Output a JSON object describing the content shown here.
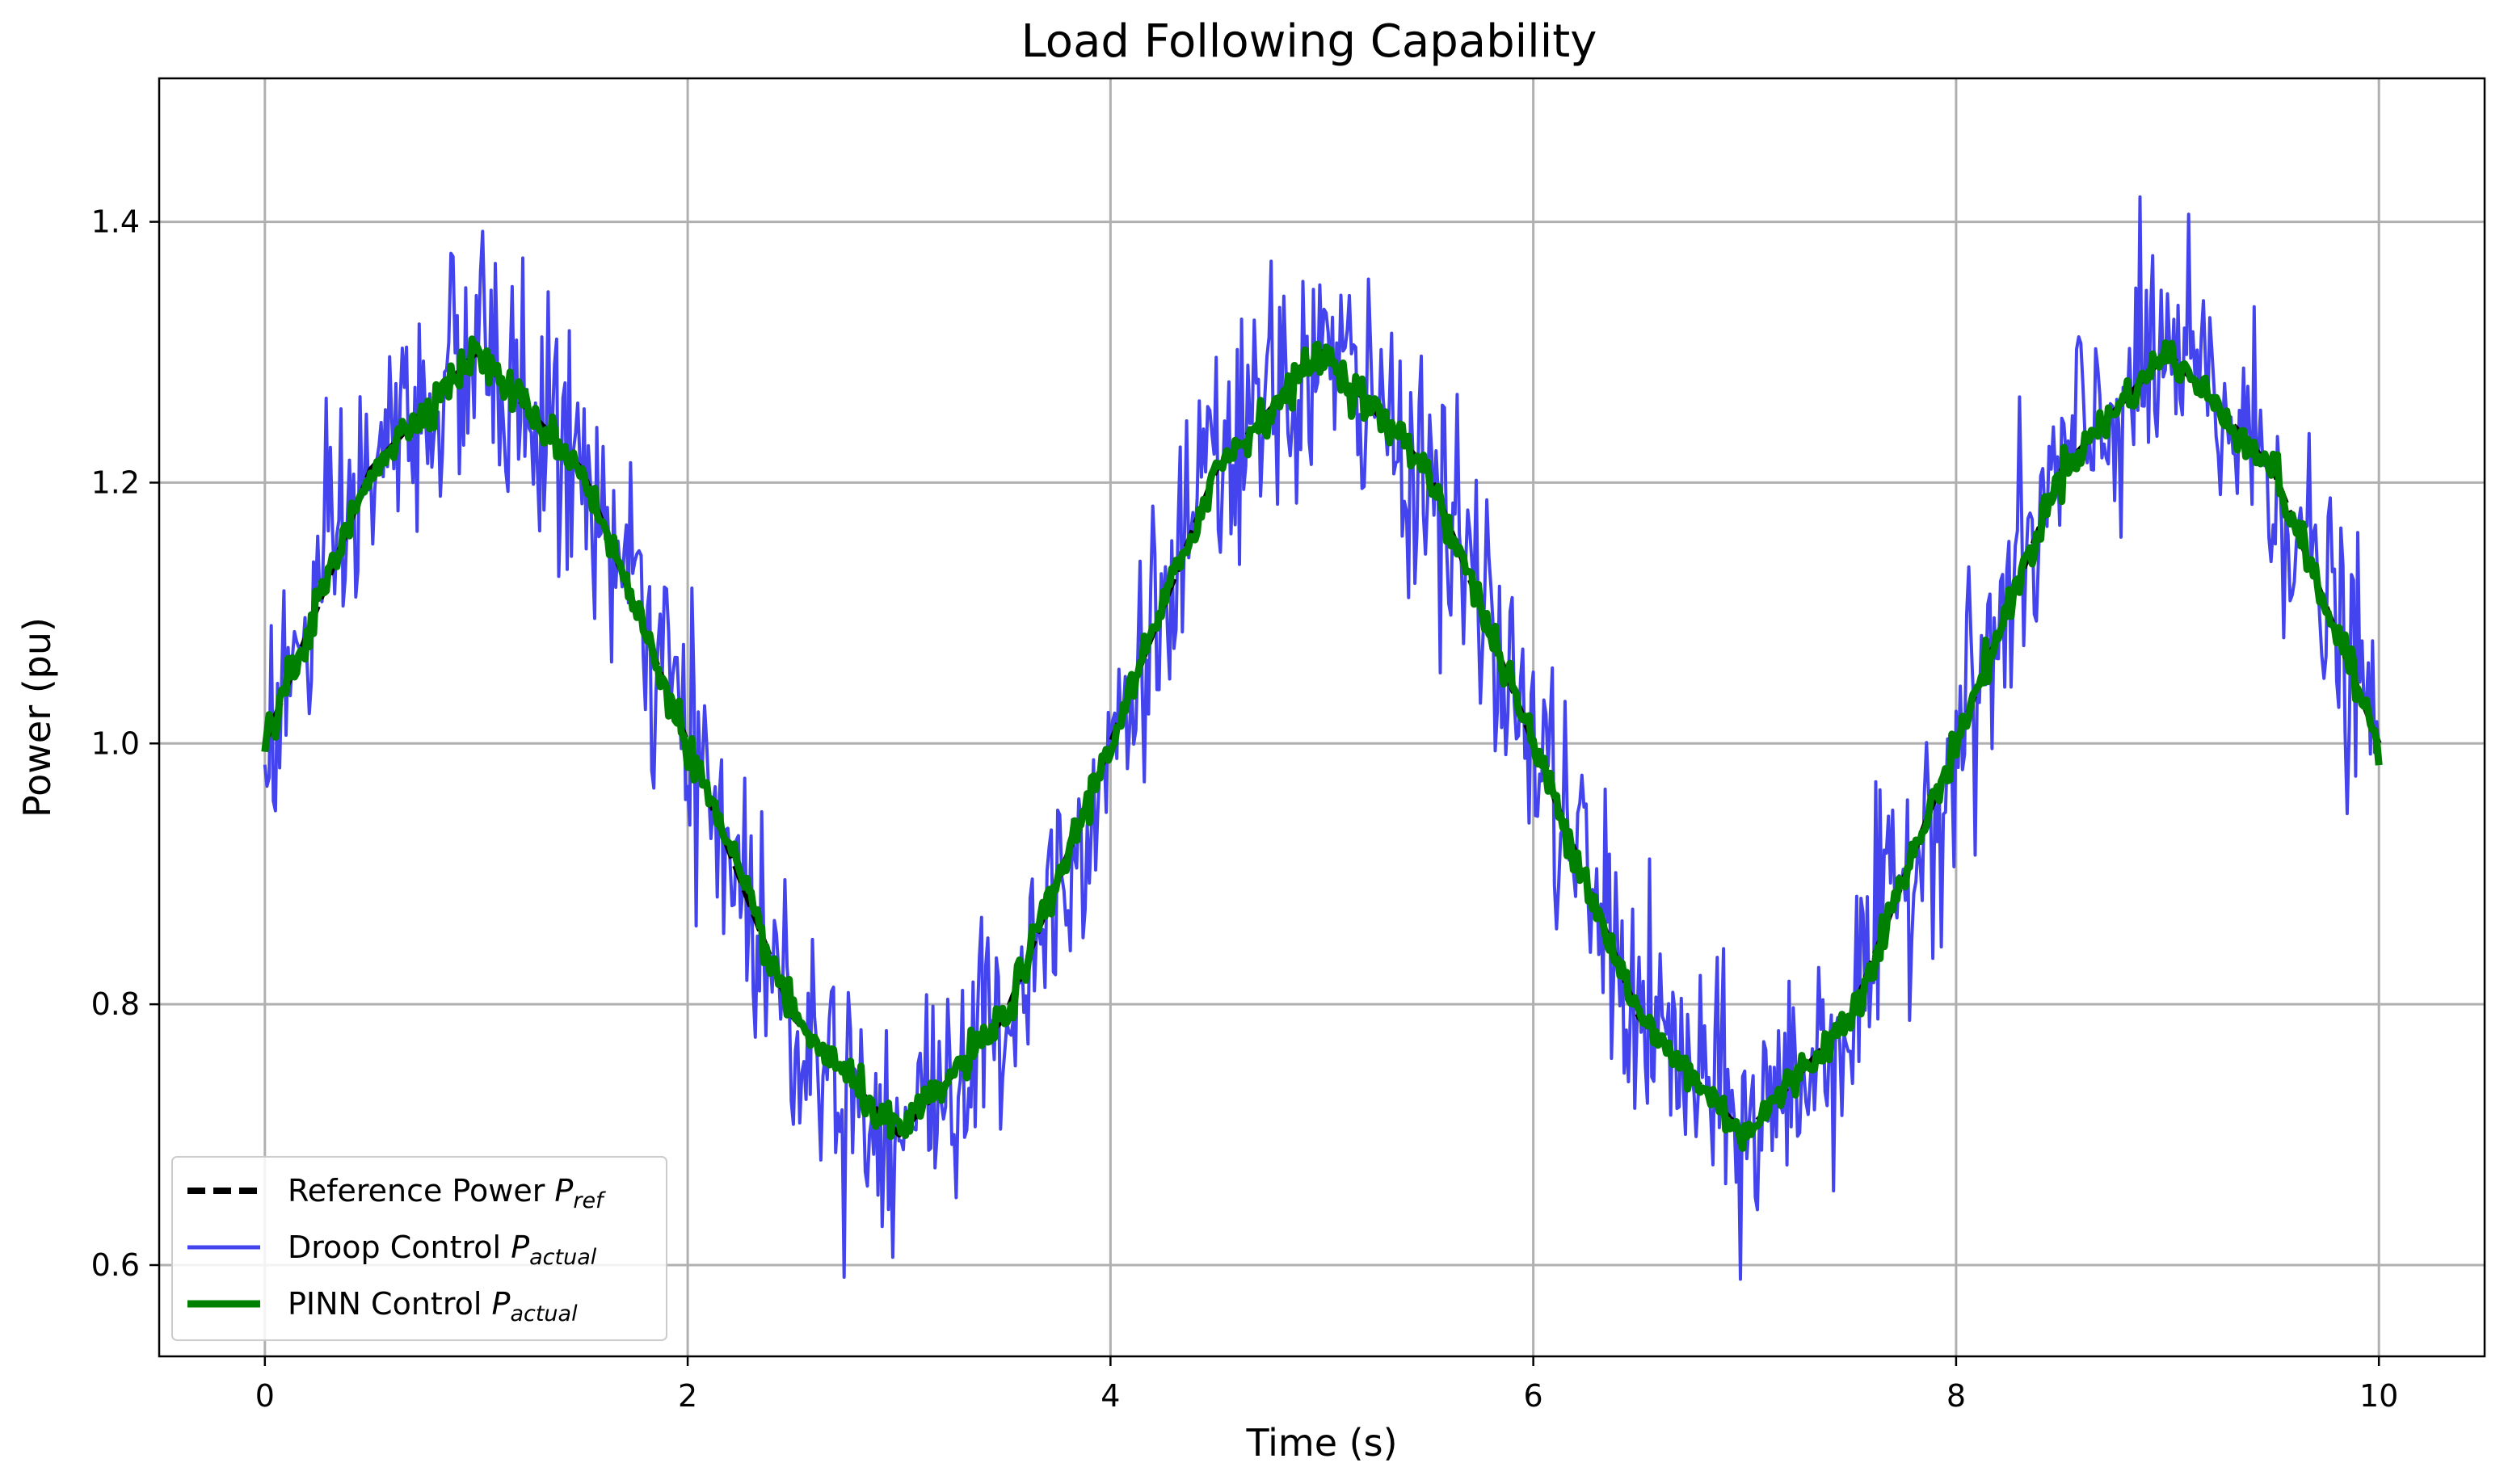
{
  "chart_data": {
    "type": "line",
    "title": "Load Following Capability",
    "xlabel": "Time (s)",
    "ylabel": "Power (pu)",
    "xlim": [
      -0.5,
      10.5
    ],
    "ylim": [
      0.53,
      1.51
    ],
    "x_ticks": [
      0,
      2,
      4,
      6,
      8,
      10
    ],
    "y_ticks": [
      0.6,
      0.8,
      1.0,
      1.2,
      1.4
    ],
    "x_tick_labels": [
      "0",
      "2",
      "4",
      "6",
      "8",
      "10"
    ],
    "y_tick_labels": [
      "0.6",
      "0.8",
      "1.0",
      "1.2",
      "1.4"
    ],
    "grid": true,
    "legend_position": "lower-left",
    "x": [
      0.0,
      0.5,
      1.0,
      1.5,
      2.0,
      2.5,
      3.0,
      3.5,
      4.0,
      4.5,
      5.0,
      5.5,
      6.0,
      6.5,
      7.0,
      7.5,
      8.0,
      8.5,
      9.0,
      9.5,
      10.0
    ],
    "series": [
      {
        "name": "Reference Power",
        "name_sub": "ref",
        "color": "#000000",
        "style": "dashed",
        "values": [
          1.0,
          1.21,
          1.3,
          1.21,
          1.0,
          0.79,
          0.7,
          0.79,
          1.0,
          1.21,
          1.3,
          1.21,
          1.0,
          0.79,
          0.7,
          0.79,
          1.0,
          1.21,
          1.3,
          1.21,
          1.0
        ]
      },
      {
        "name": "Droop Control",
        "name_sub": "actual",
        "color": "#4444ee",
        "style": "solid",
        "noise_amplitude": 0.08,
        "values": [
          1.0,
          1.21,
          1.3,
          1.21,
          1.0,
          0.79,
          0.7,
          0.79,
          1.0,
          1.21,
          1.3,
          1.21,
          1.0,
          0.79,
          0.7,
          0.79,
          1.0,
          1.21,
          1.3,
          1.21,
          1.0
        ]
      },
      {
        "name": "PINN Control",
        "name_sub": "actual",
        "color": "#008000",
        "style": "solid",
        "noise_amplitude": 0.012,
        "values": [
          1.0,
          1.21,
          1.3,
          1.21,
          1.0,
          0.79,
          0.7,
          0.79,
          1.0,
          1.21,
          1.3,
          1.21,
          1.0,
          0.79,
          0.7,
          0.79,
          1.0,
          1.21,
          1.3,
          1.21,
          1.0
        ]
      }
    ]
  }
}
